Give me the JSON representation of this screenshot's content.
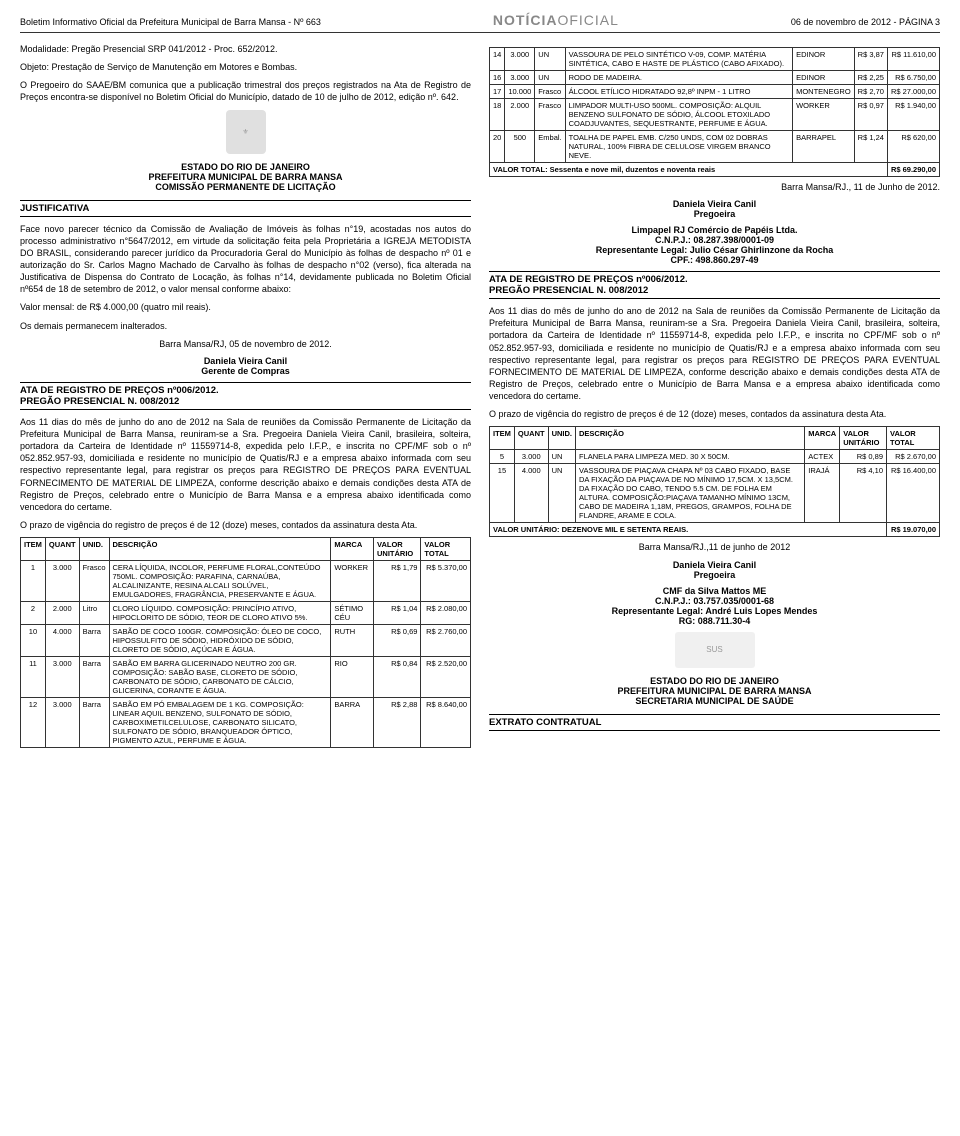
{
  "header": {
    "left": "Boletim Informativo Oficial da Prefeitura Municipal de Barra Mansa - Nº 663",
    "center_a": "NOTÍCIA",
    "center_b": "OFICIAL",
    "right": "06 de novembro de 2012 - PÁGINA 3"
  },
  "left": {
    "modalidade": "Modalidade: Pregão Presencial SRP 041/2012 - Proc. 652/2012.",
    "objeto": "Objeto: Prestação de Serviço de Manutenção em Motores e Bombas.",
    "pregoeiro": "O Pregoeiro do SAAE/BM comunica que a publicação trimestral dos preços registrados na Ata de Registro de Preços encontra-se disponível no Boletim Oficial do Município, datado de 10 de julho de 2012, edição nº. 642.",
    "estado1": "ESTADO DO RIO DE JANEIRO",
    "prefeitura1": "PREFEITURA MUNICIPAL DE BARRA MANSA",
    "comissao1": "COMISSÃO PERMANENTE DE LICITAÇÃO",
    "justificativa_hdr": "JUSTIFICATIVA",
    "justificativa_txt": "Face novo parecer técnico da Comissão de Avaliação de Imóveis às folhas n°19, acostadas nos autos do processo administrativo n°5647/2012, em virtude da solicitação feita pela Proprietária a IGREJA METODISTA DO BRASIL, considerando parecer jurídico da Procuradoria Geral do Município às folhas de despacho nº 01 e autorização do Sr. Carlos Magno Machado de Carvalho às folhas de despacho n°02 (verso), fica alterada na Justificativa de Dispensa do Contrato de Locação, às folhas n°14, devidamente publicada no Boletim Oficial nº654 de 18 de setembro de 2012, o valor mensal conforme abaixo:",
    "valor_mensal": "Valor mensal: de R$ 4.000,00 (quatro mil reais).",
    "demais": "Os demais permanecem inalterados.",
    "data1": "Barra Mansa/RJ, 05 de novembro de 2012.",
    "sig1_name": "Daniela Vieira Canil",
    "sig1_role": "Gerente de Compras",
    "ata_hdr": "ATA DE REGISTRO DE PREÇOS nº006/2012.",
    "pregao_hdr": "PREGÃO PRESENCIAL N. 008/2012",
    "ata_txt": "Aos 11 dias do mês de junho do ano de 2012 na Sala de reuniões da Comissão Permanente de Licitação da Prefeitura Municipal de Barra Mansa, reuniram-se a Sra. Pregoeira Daniela Vieira Canil, brasileira, solteira, portadora da Carteira de Identidade nº 11559714-8, expedida pelo I.F.P., e inscrita no CPF/MF sob o nº 052.852.957-93, domiciliada e residente no município de Quatis/RJ e a empresa abaixo informada com seu respectivo representante legal, para registrar os preços para REGISTRO DE PREÇOS PARA EVENTUAL FORNECIMENTO DE MATERIAL DE LIMPEZA, conforme descrição abaixo e demais condições desta ATA de Registro de Preços, celebrado entre o Município de Barra Mansa e a empresa abaixo identificada como vencedora do certame.",
    "prazo_txt": "O prazo de vigência do registro de preços é de 12 (doze) meses, contados da assinatura desta Ata.",
    "table1": {
      "cols": [
        "ITEM",
        "QUANT",
        "UNID.",
        "DESCRIÇÃO",
        "MARCA",
        "VALOR UNITÁRIO",
        "VALOR TOTAL"
      ],
      "rows": [
        [
          "1",
          "3.000",
          "Frasco",
          "CERA LÍQUIDA, INCOLOR, PERFUME FLORAL,CONTEÚDO 750ML. COMPOSIÇÃO: PARAFINA, CARNAÚBA, ALCALINIZANTE, RESINA ALCALI SOLÚVEL, EMULGADORES, FRAGRÂNCIA, PRESERVANTE E ÁGUA.",
          "WORKER",
          "R$ 1,79",
          "R$ 5.370,00"
        ],
        [
          "2",
          "2.000",
          "Litro",
          "CLORO LÍQUIDO. COMPOSIÇÃO: PRINCÍPIO ATIVO, HIPOCLORITO DE SÓDIO, TEOR DE CLORO ATIVO 5%.",
          "SÉTIMO CÉU",
          "R$ 1,04",
          "R$ 2.080,00"
        ],
        [
          "10",
          "4.000",
          "Barra",
          "SABÃO DE COCO 100GR. COMPOSIÇÃO: ÓLEO DE COCO, HIPOSSULFITO DE SÓDIO, HIDRÓXIDO DE SÓDIO, CLORETO DE SÓDIO, AÇÚCAR E ÁGUA.",
          "RUTH",
          "R$ 0,69",
          "R$ 2.760,00"
        ],
        [
          "11",
          "3.000",
          "Barra",
          "SABÃO EM BARRA GLICERINADO NEUTRO 200 GR. COMPOSIÇÃO: SABÃO BASE, CLORETO DE SÓDIO, CARBONATO DE SÓDIO, CARBONATO DE CÁLCIO, GLICERINA, CORANTE E ÁGUA.",
          "RIO",
          "R$ 0,84",
          "R$ 2.520,00"
        ],
        [
          "12",
          "3.000",
          "Barra",
          "SABÃO EM PÓ EMBALAGEM DE 1 KG. COMPOSIÇÃO: LINEAR AQUIL BENZENO, SULFONATO DE SÓDIO, CARBOXIMETILCELULOSE, CARBONATO SILICATO, SULFONATO DE SÓDIO, BRANQUEADOR ÓPTICO, PIGMENTO AZUL, PERFUME E ÁGUA.",
          "BARRA",
          "R$ 2,88",
          "R$ 8.640,00"
        ]
      ]
    }
  },
  "right": {
    "table2": {
      "rows": [
        [
          "14",
          "3.000",
          "UN",
          "VASSOURA DE PELO SINTÉTICO V-09, COMP. MATÉRIA SINTÉTICA, CABO E HASTE DE PLÁSTICO (CABO AFIXADO).",
          "EDINOR",
          "R$ 3,87",
          "R$ 11.610,00"
        ],
        [
          "16",
          "3.000",
          "UN",
          "RODO DE MADEIRA.",
          "EDINOR",
          "R$ 2,25",
          "R$ 6.750,00"
        ],
        [
          "17",
          "10.000",
          "Frasco",
          "ÁLCOOL ETÍLICO HIDRATADO 92,8º INPM - 1 LITRO",
          "MONTENEGRO",
          "R$ 2,70",
          "R$ 27.000,00"
        ],
        [
          "18",
          "2.000",
          "Frasco",
          "LIMPADOR MULTI-USO 500ML. COMPOSIÇÃO: ALQUIL BENZENO SULFONATO DE SÓDIO, ÁLCOOL ETOXILADO COADJUVANTES, SEQUESTRANTE, PERFUME E ÁGUA.",
          "WORKER",
          "R$ 0,97",
          "R$ 1.940,00"
        ],
        [
          "20",
          "500",
          "Embal.",
          "TOALHA DE PAPEL EMB. C/250 UNDS, COM 02 DOBRAS NATURAL, 100% FIBRA DE CELULOSE VIRGEM BRANCO NEVE.",
          "BARRAPEL",
          "R$ 1,24",
          "R$ 620,00"
        ]
      ],
      "total_label": "VALOR TOTAL: Sessenta e nove mil, duzentos e noventa reais",
      "total_value": "R$ 69.290,00"
    },
    "data2": "Barra Mansa/RJ., 11 de Junho de 2012.",
    "sig2_name": "Daniela Vieira Canil",
    "sig2_role": "Pregoeira",
    "empresa1": "Limpapel RJ Comércio de Papéis Ltda.",
    "cnpj1": "C.N.P.J.: 08.287.398/0001-09",
    "rep1": "Representante Legal: Julio César Ghirlinzone da Rocha",
    "cpf1": "CPF.: 498.860.297-49",
    "ata2_hdr": "ATA DE REGISTRO DE PREÇOS nº006/2012.",
    "pregao2_hdr": "PREGÃO PRESENCIAL N. 008/2012",
    "ata2_txt": "Aos 11 dias do mês de junho do ano de 2012 na Sala de reuniões da Comissão Permanente de Licitação da Prefeitura Municipal de Barra Mansa, reuniram-se a Sra. Pregoeira Daniela Vieira Canil, brasileira, solteira, portadora da Carteira de Identidade nº 11559714-8, expedida pelo I.F.P., e inscrita no CPF/MF sob o nº 052.852.957-93, domiciliada e residente no município de Quatis/RJ e a empresa abaixo informada com seu respectivo representante legal, para registrar os preços para REGISTRO DE PREÇOS PARA EVENTUAL FORNECIMENTO DE MATERIAL DE LIMPEZA, conforme descrição abaixo e demais condições desta ATA de Registro de Preços, celebrado entre o Município de Barra Mansa e a empresa abaixo identificada como vencedora do certame.",
    "prazo2_txt": "O prazo de vigência do registro de preços é de 12 (doze) meses, contados da assinatura desta Ata.",
    "table3": {
      "cols": [
        "ITEM",
        "QUANT",
        "UNID.",
        "DESCRIÇÃO",
        "MARCA",
        "VALOR UNITÁRIO",
        "VALOR TOTAL"
      ],
      "rows": [
        [
          "5",
          "3.000",
          "UN",
          "FLANELA PARA LIMPEZA MED. 30 X 50CM.",
          "ACTEX",
          "R$ 0,89",
          "R$ 2.670,00"
        ],
        [
          "15",
          "4.000",
          "UN",
          "VASSOURA DE PIAÇAVA CHAPA Nº 03 CABO FIXADO, BASE DA FIXAÇÃO DA PIAÇAVA DE NO MÍNIMO 17,5CM. X 13,5CM. DA FIXAÇÃO DO CABO, TENDO 5.5 CM. DE FOLHA EM ALTURA. COMPOSIÇÃO:PIAÇAVA TAMANHO MÍNIMO 13CM, CABO DE MADEIRA 1,18M, PREGOS, GRAMPOS, FOLHA DE FLANDRE, ARAME E COLA.",
          "IRAJÁ",
          "R$ 4,10",
          "R$ 16.400,00"
        ]
      ],
      "total_label": "VALOR UNITÁRIO: DEZENOVE MIL E SETENTA REAIS.",
      "total_value": "R$ 19.070,00"
    },
    "data3": "Barra Mansa/RJ.,11 de junho de 2012",
    "sig3_name": "Daniela Vieira Canil",
    "sig3_role": "Pregoeira",
    "empresa2": "CMF da Silva Mattos ME",
    "cnpj2": "C.N.P.J.: 03.757.035/0001-68",
    "rep2": "Representante Legal: André Luis Lopes Mendes",
    "rg2": "RG: 088.711.30-4",
    "estado2": "ESTADO DO RIO DE JANEIRO",
    "prefeitura2": "PREFEITURA MUNICIPAL DE BARRA MANSA",
    "secretaria2": "SECRETARIA MUNICIPAL DE SAÚDE",
    "extrato_hdr": "EXTRATO CONTRATUAL"
  }
}
